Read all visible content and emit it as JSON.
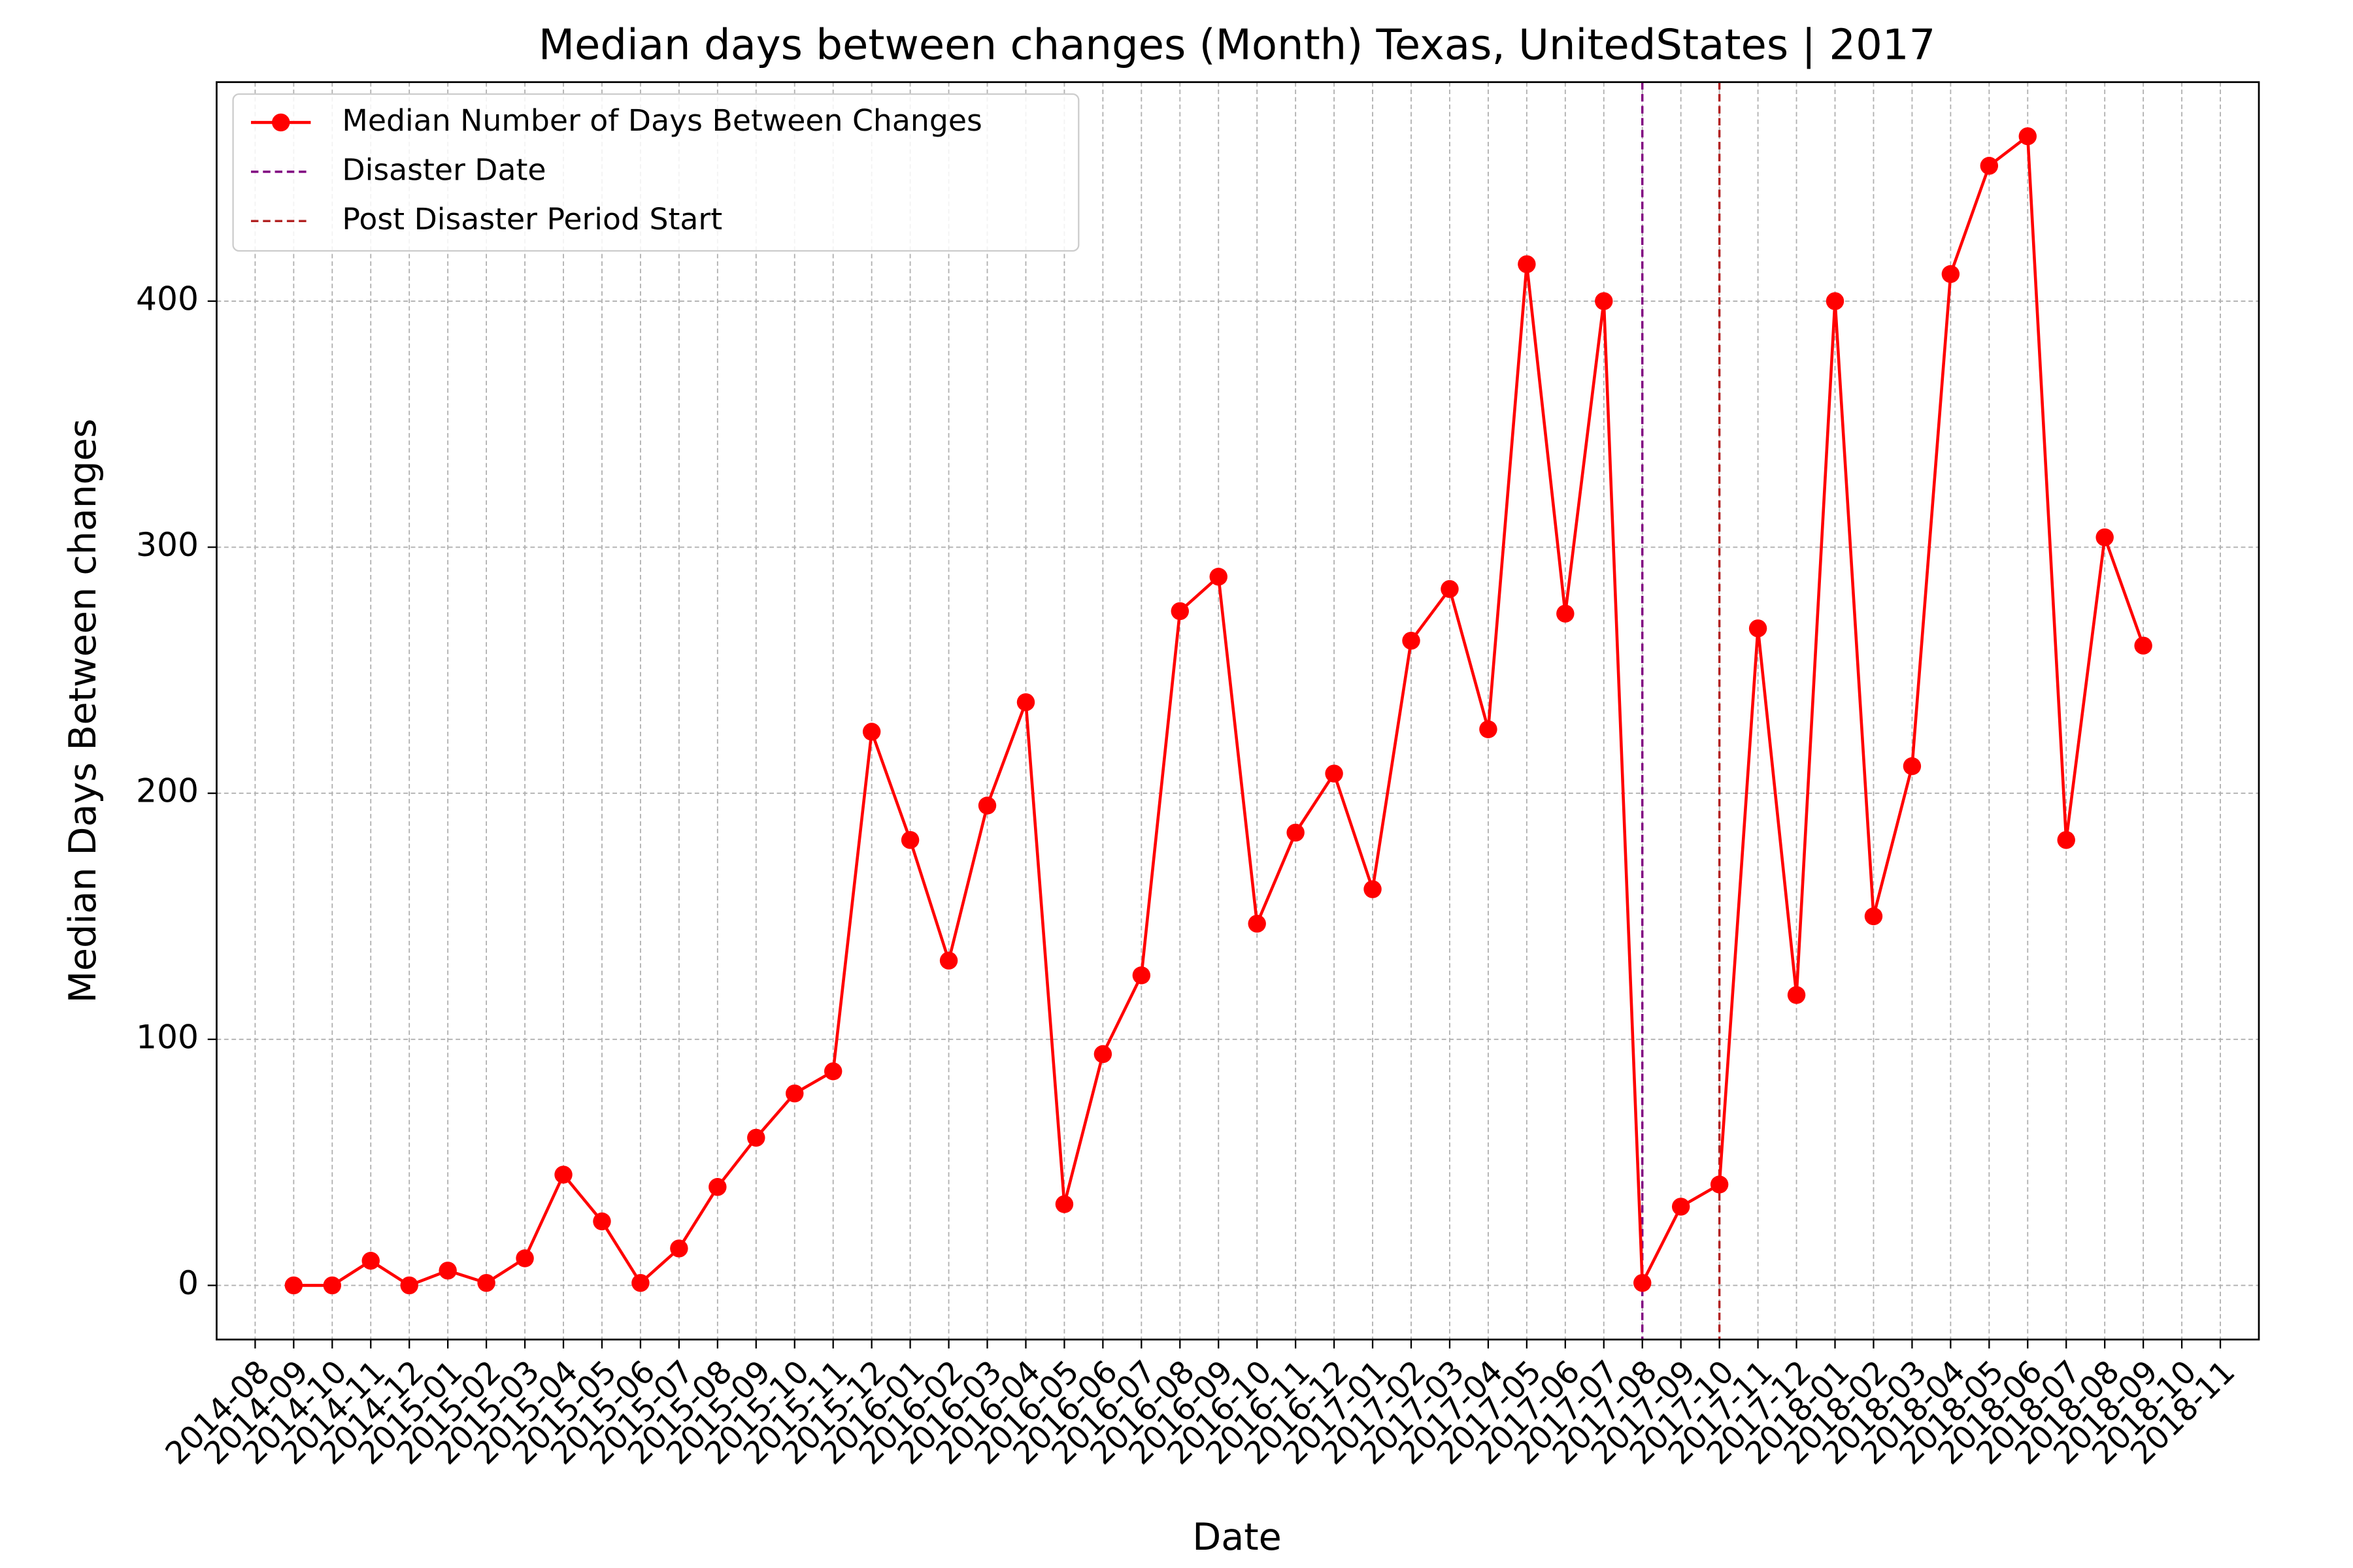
{
  "chart_data": {
    "type": "line",
    "title": "Median days between changes (Month) Texas, UnitedStates | 2017",
    "xlabel": "Date",
    "ylabel": "Median Days Between changes",
    "x": [
      "2014-09",
      "2014-10",
      "2014-11",
      "2014-12",
      "2015-01",
      "2015-02",
      "2015-03",
      "2015-04",
      "2015-05",
      "2015-06",
      "2015-07",
      "2015-08",
      "2015-09",
      "2015-10",
      "2015-11",
      "2015-12",
      "2016-01",
      "2016-02",
      "2016-03",
      "2016-04",
      "2016-05",
      "2016-06",
      "2016-07",
      "2016-08",
      "2016-09",
      "2016-10",
      "2016-11",
      "2016-12",
      "2017-01",
      "2017-02",
      "2017-03",
      "2017-04",
      "2017-05",
      "2017-06",
      "2017-07",
      "2017-08",
      "2017-09",
      "2017-10",
      "2017-11",
      "2017-12",
      "2018-01",
      "2018-02",
      "2018-03",
      "2018-04",
      "2018-05",
      "2018-06",
      "2018-07",
      "2018-08",
      "2018-09"
    ],
    "series": [
      {
        "name": "Median Number of Days Between Changes",
        "color": "#ff0000",
        "values": [
          0,
          0,
          10,
          0,
          6,
          1,
          11,
          45,
          26,
          1,
          15,
          40,
          60,
          78,
          87,
          225,
          181,
          132,
          195,
          237,
          33,
          94,
          126,
          274,
          288,
          147,
          184,
          208,
          161,
          262,
          283,
          226,
          415,
          273,
          400,
          1,
          32,
          41,
          267,
          118,
          400,
          150,
          211,
          411,
          455,
          467,
          181,
          304,
          260
        ]
      }
    ],
    "vlines": [
      {
        "name": "Disaster Date",
        "x": "2017-08",
        "color": "#800080"
      },
      {
        "name": "Post Disaster Period Start",
        "x": "2017-10",
        "color": "#b22222"
      }
    ],
    "xlim": [
      "2014-07",
      "2018-12"
    ],
    "xticks": [
      "2014-08",
      "2014-09",
      "2014-10",
      "2014-11",
      "2014-12",
      "2015-01",
      "2015-02",
      "2015-03",
      "2015-04",
      "2015-05",
      "2015-06",
      "2015-07",
      "2015-08",
      "2015-09",
      "2015-10",
      "2015-11",
      "2015-12",
      "2016-01",
      "2016-02",
      "2016-03",
      "2016-04",
      "2016-05",
      "2016-06",
      "2016-07",
      "2016-08",
      "2016-09",
      "2016-10",
      "2016-11",
      "2016-12",
      "2017-01",
      "2017-02",
      "2017-03",
      "2017-04",
      "2017-05",
      "2017-06",
      "2017-07",
      "2017-08",
      "2017-09",
      "2017-10",
      "2017-11",
      "2017-12",
      "2018-01",
      "2018-02",
      "2018-03",
      "2018-04",
      "2018-05",
      "2018-06",
      "2018-07",
      "2018-08",
      "2018-09",
      "2018-10",
      "2018-11"
    ],
    "ylim": [
      -22,
      489
    ],
    "yticks": [
      0,
      100,
      200,
      300,
      400
    ],
    "grid": true,
    "legend": "upper left"
  }
}
